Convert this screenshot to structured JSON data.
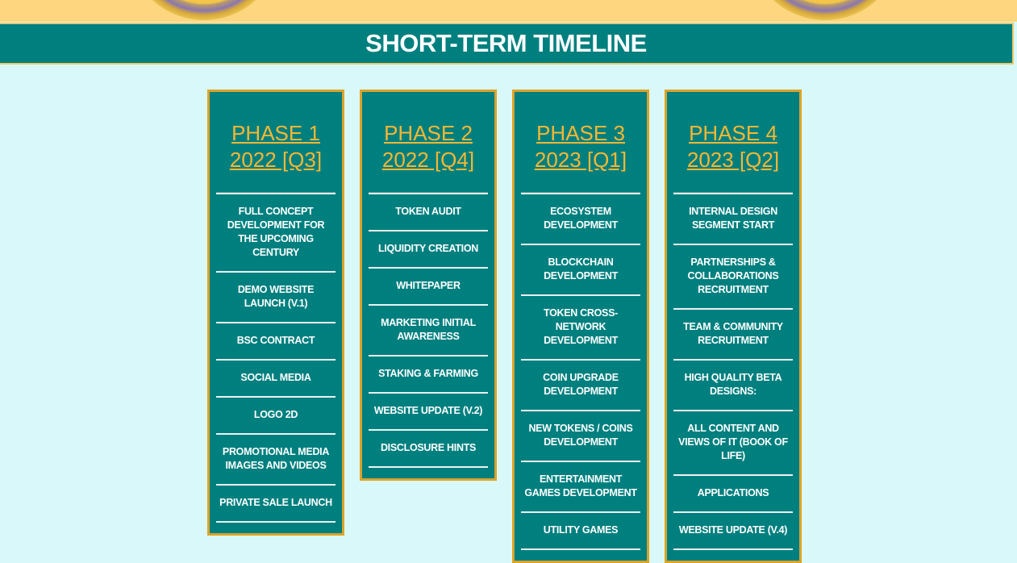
{
  "header": {
    "title": "SHORT-TERM TIMELINE"
  },
  "phases": [
    {
      "name": "PHASE 1",
      "period": "2022 [Q3]",
      "items": [
        "FULL CONCEPT DEVELOPMENT FOR THE UPCOMING CENTURY",
        "DEMO WEBSITE LAUNCH (V.1)",
        "BSC CONTRACT",
        "SOCIAL MEDIA",
        "LOGO 2D",
        "PROMOTIONAL MEDIA IMAGES AND VIDEOS",
        "PRIVATE SALE LAUNCH"
      ]
    },
    {
      "name": "PHASE 2",
      "period": "2022 [Q4]",
      "items": [
        "TOKEN AUDIT",
        "LIQUIDITY CREATION",
        "WHITEPAPER",
        "MARKETING INITIAL AWARENESS",
        "STAKING & FARMING",
        "WEBSITE UPDATE (V.2)",
        "DISCLOSURE HINTS"
      ]
    },
    {
      "name": "PHASE 3",
      "period": "2023 [Q1]",
      "items": [
        "ECOSYSTEM DEVELOPMENT",
        "BLOCKCHAIN DEVELOPMENT",
        "TOKEN CROSS-NETWORK DEVELOPMENT",
        "COIN UPGRADE DEVELOPMENT",
        "NEW TOKENS / COINS DEVELOPMENT",
        "ENTERTAINMENT GAMES DEVELOPMENT",
        "UTILITY GAMES"
      ]
    },
    {
      "name": "PHASE 4",
      "period": "2023 [Q2]",
      "items": [
        "INTERNAL DESIGN SEGMENT START",
        "PARTNERSHIPS & COLLABORATIONS RECRUITMENT",
        "TEAM & COMMUNITY RECRUITMENT",
        "HIGH QUALITY BETA DESIGNS:",
        "ALL CONTENT AND VIEWS OF IT (BOOK OF LIFE)",
        "APPLICATIONS",
        "WEBSITE UPDATE (V.4)"
      ]
    }
  ]
}
